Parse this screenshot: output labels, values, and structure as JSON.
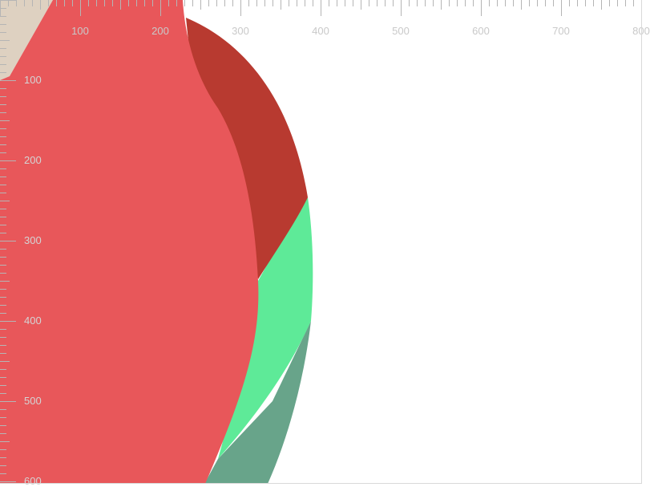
{
  "colors": {
    "ruler_tick": "#b5b5b5",
    "ruler_text_top": "#c9c9c9",
    "ruler_text_left": "#d4d4d4",
    "shape_main": "#e8575a",
    "shape_dark_red": "#b83a30",
    "shape_green": "#5eea98",
    "shape_teal": "#68a48a",
    "shape_beige": "#ded1c1"
  },
  "rulers": {
    "top": {
      "labels": [
        "100",
        "200",
        "300",
        "400",
        "500",
        "600",
        "700",
        "800"
      ]
    },
    "left": {
      "labels": [
        "100",
        "200",
        "300",
        "400",
        "500",
        "600"
      ]
    }
  },
  "shapes": [
    {
      "name": "beige-shape"
    },
    {
      "name": "teal-shape"
    },
    {
      "name": "green-shape"
    },
    {
      "name": "dark-red-shape"
    },
    {
      "name": "coral-shape"
    }
  ]
}
